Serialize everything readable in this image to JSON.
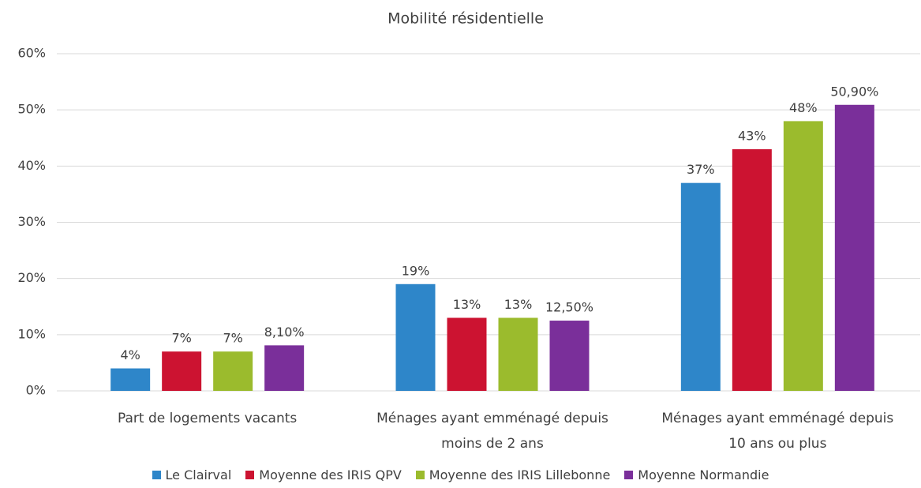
{
  "chart_data": {
    "type": "bar",
    "title": "Mobilité résidentielle",
    "categories": [
      "Part de logements vacants",
      "Ménages ayant emménagé depuis moins de 2 ans",
      "Ménages ayant emménagé depuis 10 ans ou plus"
    ],
    "series": [
      {
        "name": "Le Clairval",
        "color": "#2e86c9",
        "values": [
          4,
          19,
          37
        ],
        "value_labels": [
          "4%",
          "19%",
          "37%"
        ]
      },
      {
        "name": "Moyenne des IRIS QPV",
        "color": "#cc1331",
        "values": [
          7,
          13,
          43
        ],
        "value_labels": [
          "7%",
          "13%",
          "43%"
        ]
      },
      {
        "name": "Moyenne des IRIS Lillebonne",
        "color": "#9bbb2d",
        "values": [
          7,
          13,
          48
        ],
        "value_labels": [
          "7%",
          "13%",
          "48%"
        ]
      },
      {
        "name": "Moyenne Normandie",
        "color": "#7a2f9a",
        "values": [
          8.1,
          12.5,
          50.9
        ],
        "value_labels": [
          "8,10%",
          "12,50%",
          "50,90%"
        ]
      }
    ],
    "ylim": [
      0,
      60
    ],
    "yticks": [
      {
        "value": 0,
        "label": "0%"
      },
      {
        "value": 10,
        "label": "10%"
      },
      {
        "value": 20,
        "label": "20%"
      },
      {
        "value": 30,
        "label": "30%"
      },
      {
        "value": 40,
        "label": "40%"
      },
      {
        "value": 50,
        "label": "50%"
      },
      {
        "value": 60,
        "label": "60%"
      }
    ],
    "grid": true
  }
}
